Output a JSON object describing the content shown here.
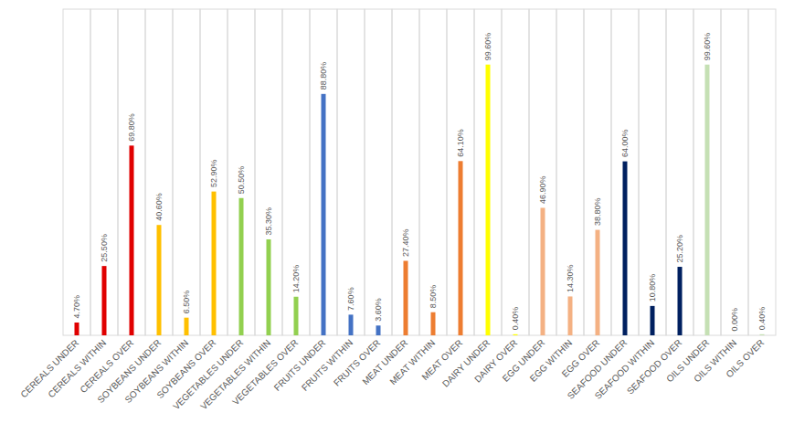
{
  "chart_data": {
    "type": "bar",
    "categories": [
      "CEREALS UNDER",
      "CEREALS WITHIN",
      "CEREALS OVER",
      "SOYBEANS UNDER",
      "SOYBEANS WITHIN",
      "SOYBEANS OVER",
      "VEGETABLES UNDER",
      "VEGETABLES WITHIN",
      "VEGETABLES OVER",
      "FRUITS UNDER",
      "FRUITS WITHIN",
      "FRUITS OVER",
      "MEAT UNDER",
      "MEAT WITHIN",
      "MEAT OVER",
      "DAIRY UNDER",
      "DAIRY OVER",
      "EGG UNDER",
      "EGG WITHIN",
      "EGG OVER",
      "SEAFOOD UNDER",
      "SEAFOOD WITHIN",
      "SEAFOOD OVER",
      "OILS UNDER",
      "OILS WITHIN",
      "OILS OVER"
    ],
    "values": [
      4.7,
      25.5,
      69.8,
      40.6,
      6.5,
      52.9,
      50.5,
      35.3,
      14.2,
      88.8,
      7.6,
      3.6,
      27.4,
      8.5,
      64.1,
      99.6,
      0.4,
      46.9,
      14.3,
      38.8,
      64.0,
      10.8,
      25.2,
      99.6,
      0.0,
      0.4
    ],
    "value_labels": [
      "4.70%",
      "25.50%",
      "69.80%",
      "40.60%",
      "6.50%",
      "52.90%",
      "50.50%",
      "35.30%",
      "14.20%",
      "88.80%",
      "7.60%",
      "3.60%",
      "27.40%",
      "8.50%",
      "64.10%",
      "99.60%",
      "0.40%",
      "46.90%",
      "14.30%",
      "38.80%",
      "64.00%",
      "10.80%",
      "25.20%",
      "99.60%",
      "0.00%",
      "0.40%"
    ],
    "colors": [
      "#e00000",
      "#e00000",
      "#e00000",
      "#ffc000",
      "#ffc000",
      "#ffc000",
      "#92d050",
      "#92d050",
      "#92d050",
      "#4472c4",
      "#4472c4",
      "#4472c4",
      "#ed7d31",
      "#ed7d31",
      "#ed7d31",
      "#ffff00",
      "#ffff00",
      "#f4b183",
      "#f4b183",
      "#f4b183",
      "#002060",
      "#002060",
      "#002060",
      "#c5e0b4",
      "#c5e0b4",
      "#c5e0b4"
    ],
    "ylim": [
      0,
      120
    ],
    "yticks": [],
    "grid": true,
    "data_labels": true,
    "tick_labels": "x"
  }
}
